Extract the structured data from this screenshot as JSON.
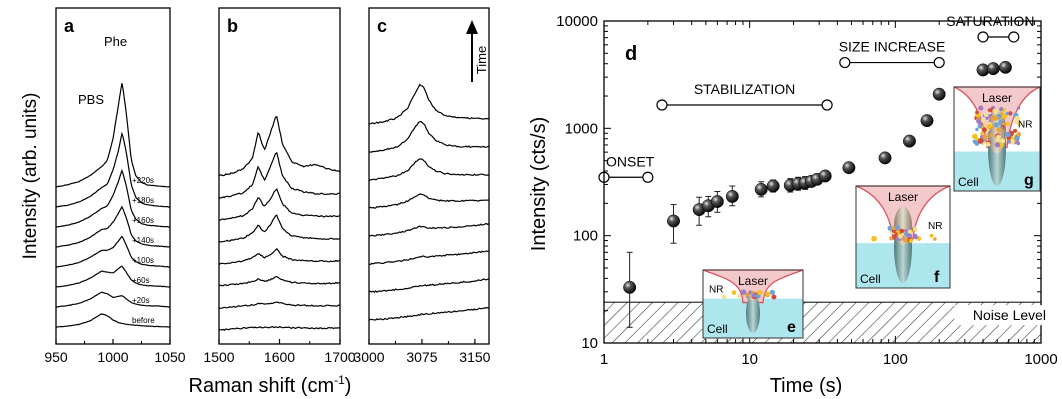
{
  "figure": {
    "left_ylabel": "Intensity (arb. units)",
    "left_xlabel_main": "Raman shift (cm",
    "left_xlabel_sup": "-1",
    "left_xlabel_end": ")",
    "annot_pbs": "PBS",
    "annot_phe": "Phe",
    "annot_time": "Time"
  },
  "chart_data": [
    {
      "type": "line",
      "panel": "a",
      "x": [
        950,
        960,
        970,
        980,
        990,
        995,
        1000,
        1005,
        1008,
        1012,
        1016,
        1020,
        1025,
        1030,
        1040,
        1050
      ],
      "xlim": [
        950,
        1050
      ],
      "xticks": [
        950,
        1000,
        1050
      ],
      "y_units": "arb. units (stacked, offset)",
      "series": [
        {
          "name": "before",
          "values": [
            0.0,
            0.02,
            0.06,
            0.14,
            0.3,
            0.26,
            0.16,
            0.1,
            0.08,
            0.06,
            0.05,
            0.04,
            0.03,
            0.02,
            0.01,
            0.0
          ]
        },
        {
          "name": "+20s",
          "values": [
            0.0,
            0.03,
            0.08,
            0.18,
            0.34,
            0.3,
            0.22,
            0.24,
            0.26,
            0.18,
            0.1,
            0.07,
            0.04,
            0.03,
            0.02,
            0.0
          ]
        },
        {
          "name": "+60s",
          "values": [
            0.0,
            0.03,
            0.09,
            0.2,
            0.36,
            0.34,
            0.32,
            0.42,
            0.48,
            0.32,
            0.16,
            0.09,
            0.05,
            0.03,
            0.02,
            0.0
          ]
        },
        {
          "name": "+100s",
          "values": [
            0.0,
            0.04,
            0.1,
            0.22,
            0.38,
            0.38,
            0.44,
            0.6,
            0.7,
            0.48,
            0.22,
            0.12,
            0.06,
            0.04,
            0.02,
            0.0
          ]
        },
        {
          "name": "+140s",
          "values": [
            0.0,
            0.04,
            0.1,
            0.22,
            0.4,
            0.42,
            0.56,
            0.78,
            0.92,
            0.64,
            0.28,
            0.14,
            0.07,
            0.04,
            0.02,
            0.0
          ]
        },
        {
          "name": "+160s",
          "values": [
            0.0,
            0.04,
            0.11,
            0.24,
            0.42,
            0.48,
            0.72,
            1.05,
            1.3,
            0.9,
            0.38,
            0.18,
            0.08,
            0.04,
            0.02,
            0.0
          ]
        },
        {
          "name": "+180s",
          "values": [
            0.0,
            0.04,
            0.11,
            0.24,
            0.44,
            0.52,
            0.84,
            1.3,
            1.7,
            1.2,
            0.5,
            0.22,
            0.09,
            0.05,
            0.02,
            0.0
          ]
        },
        {
          "name": "+220s",
          "values": [
            0.0,
            0.05,
            0.12,
            0.26,
            0.46,
            0.6,
            1.1,
            1.9,
            2.4,
            1.6,
            0.62,
            0.26,
            0.1,
            0.05,
            0.02,
            0.0
          ]
        }
      ],
      "labels": [
        "before",
        "+20s",
        "+60s",
        "+100s",
        "+140s",
        "+160s",
        "+180s",
        "+220s"
      ],
      "panel_letter": "a"
    },
    {
      "type": "line",
      "panel": "b",
      "x": [
        1500,
        1520,
        1540,
        1555,
        1565,
        1575,
        1585,
        1595,
        1605,
        1620,
        1640,
        1660,
        1680,
        1700
      ],
      "xlim": [
        1500,
        1700
      ],
      "xticks": [
        1500,
        1600,
        1700
      ],
      "y_units": "arb. units (stacked, offset)",
      "series": [
        {
          "name": "before",
          "values": [
            0.0,
            0.02,
            0.04,
            0.05,
            0.06,
            0.05,
            0.06,
            0.07,
            0.06,
            0.05,
            0.05,
            0.04,
            0.04,
            0.05
          ]
        },
        {
          "name": "+20s",
          "values": [
            0.0,
            0.02,
            0.05,
            0.07,
            0.1,
            0.08,
            0.1,
            0.14,
            0.1,
            0.07,
            0.06,
            0.05,
            0.05,
            0.06
          ]
        },
        {
          "name": "+60s",
          "values": [
            0.0,
            0.03,
            0.06,
            0.1,
            0.16,
            0.1,
            0.14,
            0.22,
            0.14,
            0.08,
            0.07,
            0.06,
            0.06,
            0.07
          ]
        },
        {
          "name": "+100s",
          "values": [
            0.0,
            0.03,
            0.07,
            0.14,
            0.24,
            0.14,
            0.22,
            0.34,
            0.18,
            0.1,
            0.08,
            0.07,
            0.06,
            0.08
          ]
        },
        {
          "name": "+140s",
          "values": [
            0.0,
            0.04,
            0.09,
            0.2,
            0.38,
            0.22,
            0.4,
            0.62,
            0.3,
            0.14,
            0.1,
            0.08,
            0.07,
            0.08
          ]
        },
        {
          "name": "+160s",
          "values": [
            0.0,
            0.04,
            0.1,
            0.24,
            0.52,
            0.3,
            0.48,
            0.72,
            0.36,
            0.16,
            0.11,
            0.09,
            0.08,
            0.09
          ]
        },
        {
          "name": "+180s",
          "values": [
            0.0,
            0.05,
            0.12,
            0.3,
            0.72,
            0.4,
            0.72,
            1.05,
            0.5,
            0.22,
            0.14,
            0.1,
            0.09,
            0.1
          ]
        },
        {
          "name": "+220s",
          "values": [
            0.0,
            0.06,
            0.16,
            0.4,
            1.0,
            0.58,
            0.98,
            1.4,
            0.72,
            0.32,
            0.22,
            0.26,
            0.16,
            0.1
          ]
        }
      ],
      "panel_letter": "b"
    },
    {
      "type": "line",
      "panel": "c",
      "x": [
        3000,
        3020,
        3040,
        3055,
        3065,
        3072,
        3078,
        3085,
        3095,
        3110,
        3130,
        3150,
        3170
      ],
      "xlim": [
        3000,
        3170
      ],
      "xticks": [
        3000,
        3075,
        3150
      ],
      "y_units": "arb. units (stacked, offset)",
      "series": [
        {
          "name": "before",
          "values": [
            0.0,
            0.02,
            0.05,
            0.08,
            0.1,
            0.12,
            0.13,
            0.14,
            0.16,
            0.18,
            0.21,
            0.24,
            0.28
          ]
        },
        {
          "name": "+20s",
          "values": [
            0.0,
            0.02,
            0.06,
            0.09,
            0.12,
            0.14,
            0.15,
            0.15,
            0.17,
            0.19,
            0.22,
            0.25,
            0.3
          ]
        },
        {
          "name": "+60s",
          "values": [
            0.0,
            0.03,
            0.06,
            0.1,
            0.14,
            0.17,
            0.17,
            0.16,
            0.18,
            0.2,
            0.22,
            0.26,
            0.3
          ]
        },
        {
          "name": "+100s",
          "values": [
            0.0,
            0.03,
            0.07,
            0.12,
            0.18,
            0.22,
            0.21,
            0.18,
            0.18,
            0.19,
            0.21,
            0.24,
            0.28
          ]
        },
        {
          "name": "+140s",
          "values": [
            0.0,
            0.03,
            0.08,
            0.16,
            0.26,
            0.32,
            0.3,
            0.22,
            0.18,
            0.16,
            0.16,
            0.17,
            0.18
          ]
        },
        {
          "name": "+160s",
          "values": [
            0.0,
            0.04,
            0.1,
            0.22,
            0.4,
            0.48,
            0.44,
            0.3,
            0.2,
            0.14,
            0.12,
            0.12,
            0.12
          ]
        },
        {
          "name": "+180s",
          "values": [
            0.0,
            0.04,
            0.12,
            0.3,
            0.56,
            0.7,
            0.64,
            0.42,
            0.26,
            0.16,
            0.12,
            0.12,
            0.12
          ]
        },
        {
          "name": "+220s",
          "values": [
            0.0,
            0.05,
            0.14,
            0.36,
            0.7,
            0.9,
            0.82,
            0.54,
            0.3,
            0.18,
            0.14,
            0.13,
            0.12
          ]
        }
      ],
      "panel_letter": "c"
    },
    {
      "type": "scatter",
      "panel": "d",
      "panel_letter": "d",
      "xlabel": "Time (s)",
      "ylabel": "Intensity (cts/s)",
      "xscale": "log",
      "yscale": "log",
      "xlim": [
        1,
        1000
      ],
      "ylim": [
        10,
        10000
      ],
      "xticks": [
        1,
        10,
        100,
        1000
      ],
      "xtick_labels": [
        "1",
        "10",
        "100",
        "1000"
      ],
      "yticks": [
        10,
        100,
        1000,
        10000
      ],
      "ytick_labels": [
        "10",
        "100",
        "1000",
        "10000"
      ],
      "points": [
        {
          "x": 1.5,
          "y": 33,
          "err_lo": 14,
          "err_hi": 70
        },
        {
          "x": 3.0,
          "y": 137,
          "err_lo": 85,
          "err_hi": 195
        },
        {
          "x": 4.5,
          "y": 175,
          "err_lo": 125,
          "err_hi": 228
        },
        {
          "x": 5.2,
          "y": 190,
          "err_lo": 150,
          "err_hi": 232
        },
        {
          "x": 6.0,
          "y": 208,
          "err_lo": 165,
          "err_hi": 258
        },
        {
          "x": 7.6,
          "y": 232,
          "err_lo": 190,
          "err_hi": 290
        },
        {
          "x": 12.0,
          "y": 270,
          "err_lo": 230,
          "err_hi": 318
        },
        {
          "x": 14.5,
          "y": 290,
          "err_lo": 255,
          "err_hi": 330
        },
        {
          "x": 19.0,
          "y": 295,
          "err_lo": 255,
          "err_hi": 340
        },
        {
          "x": 21.5,
          "y": 305,
          "err_lo": 265,
          "err_hi": 350
        },
        {
          "x": 24.0,
          "y": 310,
          "err_lo": 270,
          "err_hi": 355
        },
        {
          "x": 26.5,
          "y": 320,
          "err_lo": 285,
          "err_hi": 360
        },
        {
          "x": 29.0,
          "y": 335,
          "err_lo": 300,
          "err_hi": 370
        },
        {
          "x": 33.0,
          "y": 360,
          "err_lo": 325,
          "err_hi": 400
        },
        {
          "x": 48.0,
          "y": 430
        },
        {
          "x": 85.0,
          "y": 530
        },
        {
          "x": 125.0,
          "y": 760
        },
        {
          "x": 165.0,
          "y": 1180
        },
        {
          "x": 200.0,
          "y": 2080
        },
        {
          "x": 400.0,
          "y": 3500
        },
        {
          "x": 470.0,
          "y": 3600
        },
        {
          "x": 570.0,
          "y": 3700
        }
      ],
      "phases": [
        {
          "label": "ONSET",
          "x_start": 1.0,
          "x_end": 2.0,
          "y": 350
        },
        {
          "label": "STABILIZATION",
          "x_start": 2.5,
          "x_end": 34.0,
          "y": 1650
        },
        {
          "label": "SIZE INCREASE",
          "x_start": 45.0,
          "x_end": 200.0,
          "y": 4100
        },
        {
          "label": "SATURATION",
          "x_start": 400.0,
          "x_end": 650.0,
          "y": 7100
        }
      ],
      "noise_level": {
        "label": "Noise Level",
        "y_max": 24
      },
      "insets": [
        {
          "letter": "e",
          "laser_label": "Laser",
          "nr_label": "NR",
          "cell_label": "Cell"
        },
        {
          "letter": "f",
          "laser_label": "Laser",
          "nr_label": "NR",
          "cell_label": "Cell"
        },
        {
          "letter": "g",
          "laser_label": "Laser",
          "nr_label": "NR",
          "cell_label": "Cell"
        }
      ],
      "colors": {
        "laser_fill": "#f4c9cc",
        "laser_edge": "#d9535f",
        "cell_fill": "#aee6ee",
        "rod_fill": "#7fa6a8",
        "marker": "#1a1a1a"
      }
    }
  ]
}
